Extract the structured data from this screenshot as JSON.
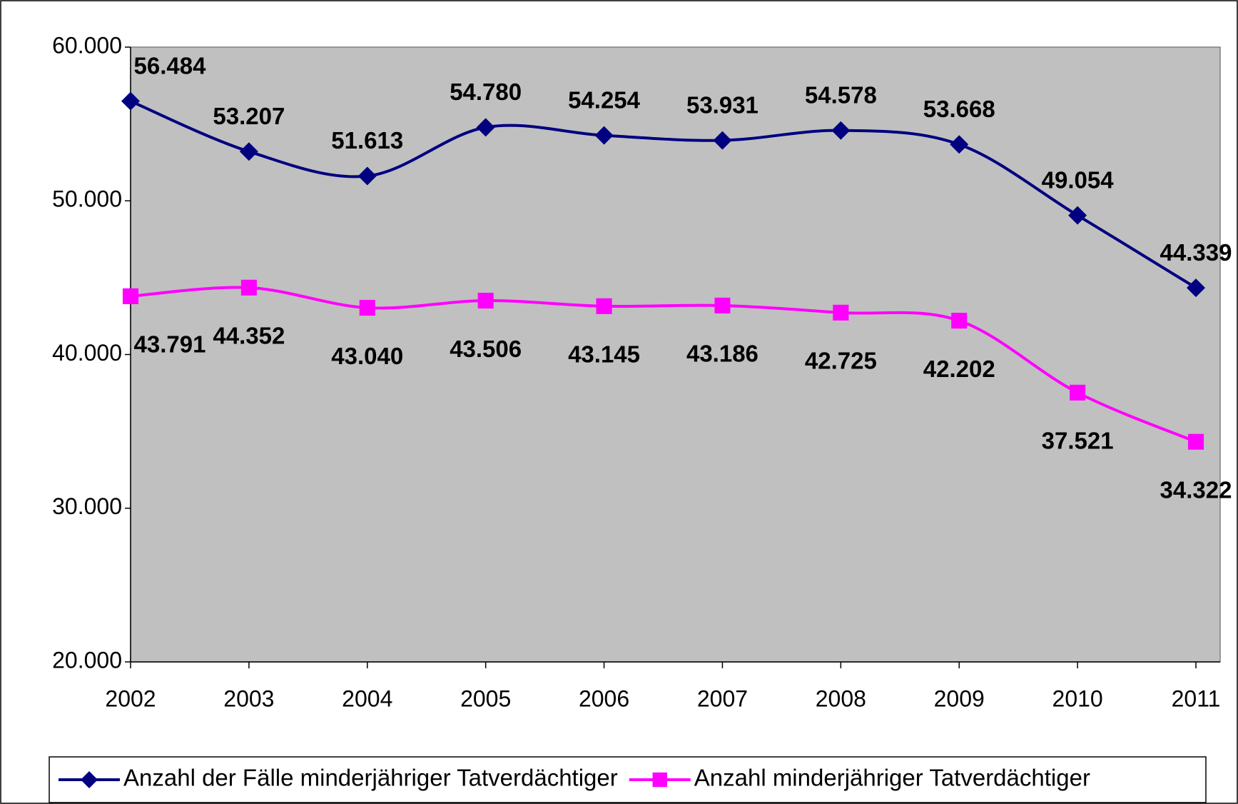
{
  "chart_data": {
    "type": "line",
    "categories": [
      "2002",
      "2003",
      "2004",
      "2005",
      "2006",
      "2007",
      "2008",
      "2009",
      "2010",
      "2011"
    ],
    "series": [
      {
        "name": "Anzahl der Fälle minderjähriger Tatverdächtiger",
        "color": "#000080",
        "marker": "diamond",
        "values": [
          56484,
          53207,
          51613,
          54780,
          54254,
          53931,
          54578,
          53668,
          49054,
          44339
        ],
        "value_labels": [
          "56.484",
          "53.207",
          "51.613",
          "54.780",
          "54.254",
          "53.931",
          "54.578",
          "53.668",
          "49.054",
          "44.339"
        ]
      },
      {
        "name": "Anzahl minderjähriger Tatverdächtiger",
        "color": "#ff00ff",
        "marker": "square",
        "values": [
          43791,
          44352,
          43040,
          43506,
          43145,
          43186,
          42725,
          42202,
          37521,
          34322
        ],
        "value_labels": [
          "43.791",
          "44.352",
          "43.040",
          "43.506",
          "43.145",
          "43.186",
          "42.725",
          "42.202",
          "37.521",
          "34.322"
        ]
      }
    ],
    "ylim": [
      20000,
      60000
    ],
    "yticks": [
      {
        "value": 20000,
        "label": "20.000"
      },
      {
        "value": 30000,
        "label": "30.000"
      },
      {
        "value": 40000,
        "label": "40.000"
      },
      {
        "value": 50000,
        "label": "50.000"
      },
      {
        "value": 60000,
        "label": "60.000"
      }
    ],
    "plot_background": "#c0c0c0",
    "legend": "bottom"
  }
}
